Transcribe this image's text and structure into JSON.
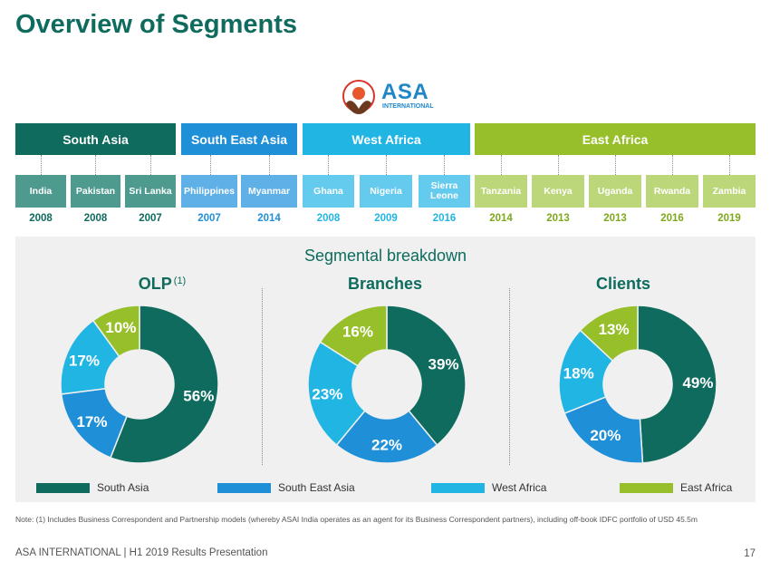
{
  "title": "Overview of Segments",
  "logo": {
    "name": "ASA",
    "sub": "INTERNATIONAL"
  },
  "colors": {
    "south_asia": "#0e6b5e",
    "south_east_asia": "#1f8fd8",
    "west_africa": "#21b5e4",
    "east_africa": "#97bf2a"
  },
  "regions": [
    {
      "label": "South Asia"
    },
    {
      "label": "South East Asia"
    },
    {
      "label": "West Africa"
    },
    {
      "label": "East Africa"
    }
  ],
  "countries": [
    {
      "name": "India",
      "year": "2008"
    },
    {
      "name": "Pakistan",
      "year": "2008"
    },
    {
      "name": "Sri Lanka",
      "year": "2007"
    },
    {
      "name": "Philippines",
      "year": "2007"
    },
    {
      "name": "Myanmar",
      "year": "2014"
    },
    {
      "name": "Ghana",
      "year": "2008"
    },
    {
      "name": "Nigeria",
      "year": "2009"
    },
    {
      "name": "Sierra Leone",
      "year": "2016"
    },
    {
      "name": "Tanzania",
      "year": "2014"
    },
    {
      "name": "Kenya",
      "year": "2013"
    },
    {
      "name": "Uganda",
      "year": "2013"
    },
    {
      "name": "Rwanda",
      "year": "2016"
    },
    {
      "name": "Zambia",
      "year": "2019"
    }
  ],
  "breakdown_title": "Segmental breakdown",
  "olp_footnote": "(1)",
  "chart_data": [
    {
      "type": "pie",
      "title": "OLP",
      "categories": [
        "South Asia",
        "South East Asia",
        "West Africa",
        "East Africa"
      ],
      "values": [
        56,
        17,
        17,
        10
      ]
    },
    {
      "type": "pie",
      "title": "Branches",
      "categories": [
        "South Asia",
        "South East Asia",
        "West Africa",
        "East Africa"
      ],
      "values": [
        39,
        22,
        23,
        16
      ]
    },
    {
      "type": "pie",
      "title": "Clients",
      "categories": [
        "South Asia",
        "South East Asia",
        "West Africa",
        "East Africa"
      ],
      "values": [
        49,
        20,
        18,
        13
      ]
    }
  ],
  "legend": [
    "South Asia",
    "South East Asia",
    "West Africa",
    "East Africa"
  ],
  "note": "Note: (1) Includes Business Correspondent and Partnership models (whereby ASAI India operates as an agent for its Business Correspondent partners), including off-book IDFC portfolio of USD 45.5m",
  "footer": "ASA INTERNATIONAL | H1 2019 Results Presentation",
  "page_number": "17"
}
